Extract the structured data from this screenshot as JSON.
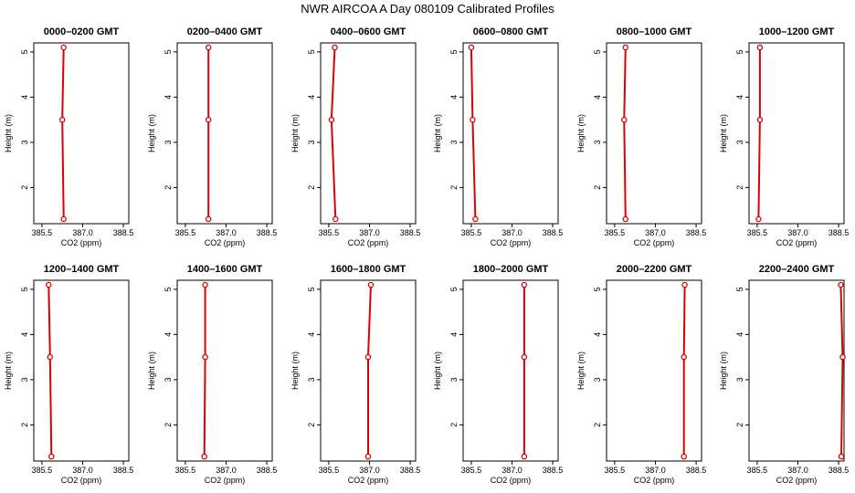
{
  "page": {
    "title": "NWR AIRCOA A  Day 080109  Calibrated Profiles"
  },
  "chart_data": {
    "type": "line",
    "title": "NWR AIRCOA A  Day 080109  Calibrated Profiles",
    "xlabel": "CO2 (ppm)",
    "ylabel": "Height (m)",
    "xlim": [
      385.2,
      388.7
    ],
    "ylim": [
      1.2,
      5.2
    ],
    "xticks": [
      385.5,
      387.0,
      388.5
    ],
    "xtick_labels": [
      "385.5",
      "387.0",
      "388.5"
    ],
    "yticks": [
      2,
      3,
      4,
      5
    ],
    "ytick_labels": [
      "2",
      "3",
      "4",
      "5"
    ],
    "heights": [
      1.3,
      3.5,
      5.1
    ],
    "colors": {
      "line": "#dd0000",
      "axes": "#000000"
    },
    "panels": [
      {
        "title": "0000–0200 GMT",
        "values": [
          386.3,
          386.25,
          386.3
        ]
      },
      {
        "title": "0200–0400 GMT",
        "values": [
          386.35,
          386.35,
          386.35
        ]
      },
      {
        "title": "0400–0600 GMT",
        "values": [
          385.75,
          385.6,
          385.72
        ]
      },
      {
        "title": "0600–0800 GMT",
        "values": [
          385.65,
          385.55,
          385.5
        ]
      },
      {
        "title": "0800–1000 GMT",
        "values": [
          385.9,
          385.85,
          385.9
        ]
      },
      {
        "title": "1000–1200 GMT",
        "values": [
          385.55,
          385.6,
          385.6
        ]
      },
      {
        "title": "1200–1400 GMT",
        "values": [
          385.85,
          385.8,
          385.75
        ]
      },
      {
        "title": "1400–1600 GMT",
        "values": [
          386.2,
          386.23,
          386.23
        ]
      },
      {
        "title": "1600–1800 GMT",
        "values": [
          386.95,
          386.95,
          387.05
        ]
      },
      {
        "title": "1800–2000 GMT",
        "values": [
          387.45,
          387.45,
          387.45
        ]
      },
      {
        "title": "2000–2200 GMT",
        "values": [
          388.05,
          388.05,
          388.08
        ]
      },
      {
        "title": "2200–2400 GMT",
        "values": [
          388.6,
          388.65,
          388.58
        ]
      }
    ]
  }
}
